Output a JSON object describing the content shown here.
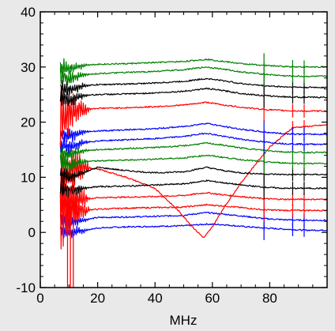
{
  "chart_data": {
    "type": "line",
    "title": "",
    "xlabel": "MHz",
    "ylabel": "",
    "xlim": [
      0,
      100
    ],
    "ylim": [
      -10,
      40
    ],
    "x_ticks": [
      0,
      20,
      40,
      60,
      80
    ],
    "x_tick_labels": [
      "0",
      "20",
      "40",
      "60",
      "80"
    ],
    "y_ticks": [
      -10,
      0,
      10,
      20,
      30,
      40
    ],
    "y_tick_labels": [
      "-10",
      "0",
      "10",
      "20",
      "30",
      "40"
    ],
    "grid": false,
    "legend": "none",
    "series": [
      {
        "color": "#0000ff",
        "baseline": 0.4,
        "x": [
          7,
          10,
          15,
          20,
          30,
          40,
          50,
          58,
          64,
          70,
          78,
          85,
          92,
          100
        ],
        "y": [
          0.4,
          0.0,
          0.3,
          0.8,
          1.0,
          1.1,
          1.2,
          1.5,
          1.4,
          1.1,
          0.8,
          0.6,
          0.4,
          0.4
        ]
      },
      {
        "color": "#0000ff",
        "baseline": 2.2,
        "x": [
          7,
          10,
          15,
          20,
          30,
          40,
          50,
          58,
          64,
          70,
          78,
          85,
          92,
          100
        ],
        "y": [
          2.2,
          1.8,
          2.2,
          2.7,
          2.8,
          2.9,
          3.1,
          3.6,
          3.3,
          3.0,
          2.5,
          2.3,
          2.2,
          2.2
        ]
      },
      {
        "color": "#ff0000",
        "baseline": 4.0,
        "x": [
          7,
          10,
          15,
          20,
          30,
          40,
          50,
          58,
          64,
          70,
          78,
          85,
          92,
          100
        ],
        "y": [
          4.0,
          3.5,
          4.0,
          4.2,
          4.4,
          4.5,
          4.6,
          5.0,
          4.8,
          4.5,
          4.1,
          4.0,
          4.0,
          4.0
        ]
      },
      {
        "color": "#ff0000",
        "baseline": 6.0,
        "x": [
          7,
          10,
          15,
          20,
          30,
          40,
          50,
          58,
          64,
          70,
          78,
          85,
          92,
          100
        ],
        "y": [
          6.0,
          5.5,
          6.0,
          6.3,
          6.4,
          6.5,
          6.7,
          7.2,
          6.8,
          6.5,
          6.1,
          6.0,
          6.0,
          6.0
        ]
      },
      {
        "color": "#ff0000",
        "baseline": 10.0,
        "x": [
          7,
          12,
          20,
          30,
          40,
          48,
          54,
          57,
          60,
          64,
          70,
          76,
          80,
          88,
          100
        ],
        "y": [
          10.0,
          12.0,
          11.5,
          10.0,
          8.0,
          4.0,
          0.5,
          -1.0,
          1.0,
          4.5,
          9.0,
          13.0,
          15.5,
          19.0,
          19.5
        ]
      },
      {
        "color": "#000000",
        "baseline": 8.0,
        "x": [
          7,
          10,
          15,
          20,
          30,
          40,
          50,
          58,
          64,
          70,
          78,
          85,
          92,
          100
        ],
        "y": [
          8.0,
          7.6,
          8.0,
          8.3,
          8.4,
          8.6,
          8.8,
          9.4,
          9.0,
          8.6,
          8.2,
          8.0,
          8.0,
          8.0
        ]
      },
      {
        "color": "#000000",
        "baseline": 10.5,
        "x": [
          7,
          10,
          15,
          20,
          30,
          40,
          50,
          58,
          64,
          70,
          78,
          85,
          92,
          100
        ],
        "y": [
          10.5,
          10.0,
          10.8,
          11.8,
          11.2,
          10.8,
          11.0,
          11.8,
          11.2,
          10.8,
          10.6,
          10.5,
          10.5,
          10.5
        ]
      },
      {
        "color": "#008000",
        "baseline": 12.5,
        "x": [
          7,
          10,
          15,
          20,
          30,
          40,
          50,
          58,
          64,
          70,
          78,
          85,
          92,
          100
        ],
        "y": [
          12.5,
          12.0,
          12.8,
          13.0,
          13.1,
          13.3,
          13.5,
          14.0,
          13.6,
          13.2,
          12.8,
          12.6,
          12.5,
          12.5
        ]
      },
      {
        "color": "#008000",
        "baseline": 14.5,
        "x": [
          7,
          10,
          15,
          20,
          30,
          40,
          50,
          58,
          64,
          70,
          78,
          85,
          92,
          100
        ],
        "y": [
          14.5,
          14.0,
          14.8,
          15.0,
          15.2,
          15.4,
          15.7,
          16.2,
          15.8,
          15.3,
          14.9,
          14.6,
          14.5,
          14.5
        ]
      },
      {
        "color": "#0000ff",
        "baseline": 16.0,
        "x": [
          7,
          10,
          15,
          20,
          30,
          40,
          50,
          58,
          64,
          70,
          78,
          85,
          92,
          100
        ],
        "y": [
          16.0,
          15.5,
          16.3,
          16.6,
          16.8,
          17.0,
          17.4,
          18.0,
          17.4,
          16.9,
          16.4,
          16.1,
          16.0,
          16.0
        ]
      },
      {
        "color": "#0000ff",
        "baseline": 17.8,
        "x": [
          7,
          10,
          15,
          20,
          30,
          40,
          50,
          58,
          64,
          70,
          78,
          85,
          92,
          100
        ],
        "y": [
          17.8,
          17.4,
          18.2,
          18.4,
          18.6,
          18.8,
          19.2,
          19.8,
          19.2,
          18.7,
          18.2,
          17.9,
          17.8,
          17.8
        ]
      },
      {
        "color": "#ff0000",
        "baseline": 22.0,
        "x": [
          7,
          10,
          15,
          20,
          30,
          40,
          50,
          58,
          64,
          70,
          78,
          85,
          92,
          100
        ],
        "y": [
          20.5,
          21.5,
          22.3,
          22.5,
          22.6,
          22.8,
          23.1,
          23.6,
          23.1,
          22.7,
          22.3,
          22.1,
          22.0,
          22.0
        ]
      },
      {
        "color": "#000000",
        "baseline": 24.5,
        "x": [
          7,
          10,
          15,
          20,
          30,
          40,
          50,
          58,
          64,
          70,
          78,
          85,
          92,
          100
        ],
        "y": [
          24.5,
          24.0,
          24.8,
          25.0,
          25.1,
          25.3,
          25.6,
          26.1,
          25.7,
          25.2,
          24.8,
          24.6,
          24.5,
          24.5
        ]
      },
      {
        "color": "#000000",
        "baseline": 26.3,
        "x": [
          7,
          10,
          15,
          20,
          30,
          40,
          50,
          58,
          64,
          70,
          78,
          85,
          92,
          100
        ],
        "y": [
          26.3,
          25.8,
          26.6,
          26.8,
          26.9,
          27.1,
          27.4,
          27.9,
          27.5,
          27.0,
          26.6,
          26.4,
          26.3,
          26.3
        ]
      },
      {
        "color": "#008000",
        "baseline": 28.3,
        "x": [
          7,
          10,
          15,
          20,
          30,
          40,
          50,
          58,
          64,
          70,
          78,
          85,
          92,
          100
        ],
        "y": [
          28.3,
          27.8,
          28.6,
          28.8,
          29.0,
          29.2,
          29.5,
          30.0,
          29.6,
          29.1,
          28.7,
          28.4,
          28.3,
          28.3
        ]
      },
      {
        "color": "#008000",
        "baseline": 30.0,
        "x": [
          7,
          10,
          15,
          20,
          30,
          40,
          50,
          58,
          64,
          70,
          78,
          85,
          92,
          100
        ],
        "y": [
          30.0,
          29.6,
          30.3,
          30.5,
          30.6,
          30.8,
          31.0,
          31.4,
          31.0,
          30.6,
          30.3,
          30.1,
          30.0,
          30.0
        ]
      }
    ]
  }
}
